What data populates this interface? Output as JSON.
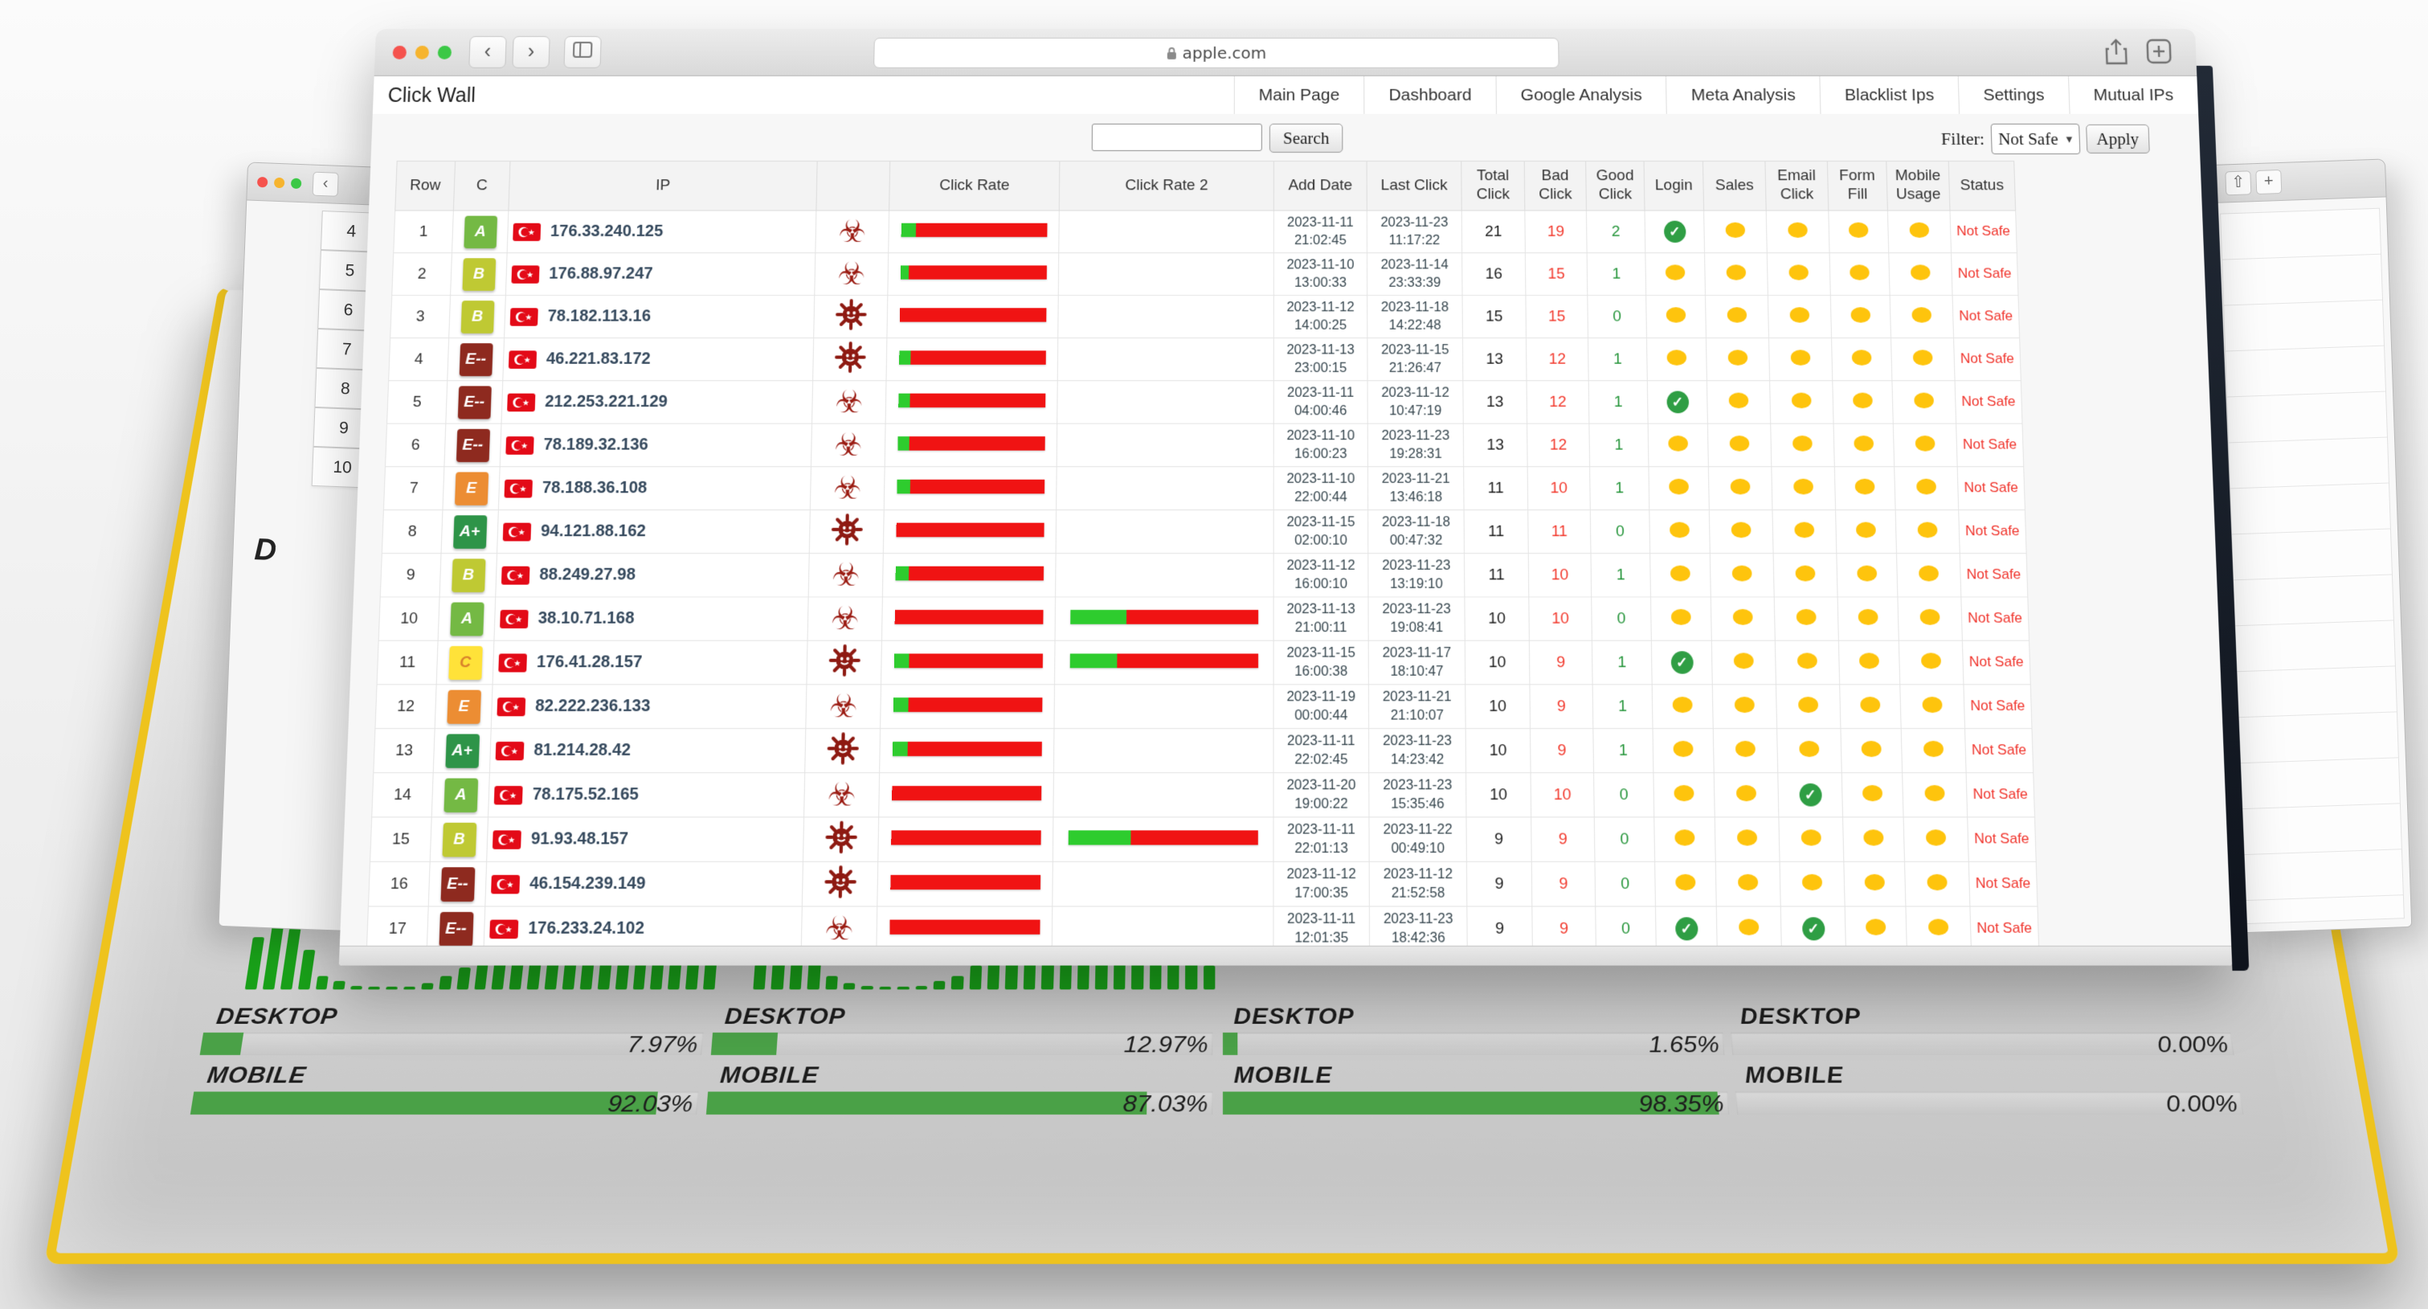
{
  "chrome": {
    "url": "apple.com",
    "brand": "Click Wall",
    "nav": [
      "Main Page",
      "Dashboard",
      "Google Analysis",
      "Meta Analysis",
      "Blacklist Ips",
      "Settings",
      "Mutual IPs"
    ],
    "search_button": "Search",
    "filter_label": "Filter:",
    "filter_value": "Not Safe",
    "apply_button": "Apply"
  },
  "icons": {
    "back": "‹",
    "forward": "›",
    "plus": "+",
    "check": "✓",
    "biohazard": "☣",
    "select_caret": "▾"
  },
  "table": {
    "headers": [
      "Row",
      "C",
      "IP",
      "",
      "Click Rate",
      "Click Rate 2",
      "Add Date",
      "Last Click",
      "Total Click",
      "Bad Click",
      "Good Click",
      "Login",
      "Sales",
      "Email Click",
      "Form Fill",
      "Mobile Usage",
      "Status"
    ],
    "grade_colors": {
      "A+": "#2e9448",
      "A": "#74b944",
      "B": "#bfc933",
      "C": "#ffe239",
      "E": "#ec8d33",
      "E--": "#8e2a1f"
    },
    "grade_text_colors": {
      "C": "#d9822b"
    },
    "rows": [
      {
        "row": "1",
        "grade": "A",
        "ip": "176.33.240.125",
        "threat": "biohazard",
        "cr": 10,
        "cr2": null,
        "add_date": "2023-11-11",
        "add_time": "21:02:45",
        "last_date": "2023-11-23",
        "last_time": "11:17:22",
        "total": "21",
        "bad": "19",
        "good": "2",
        "icons": [
          "check",
          "dot",
          "dot",
          "dot",
          "dot"
        ],
        "status": "Not Safe"
      },
      {
        "row": "2",
        "grade": "B",
        "ip": "176.88.97.247",
        "threat": "biohazard",
        "cr": 6,
        "cr2": null,
        "add_date": "2023-11-10",
        "add_time": "13:00:33",
        "last_date": "2023-11-14",
        "last_time": "23:33:39",
        "total": "16",
        "bad": "15",
        "good": "1",
        "icons": [
          "dot",
          "dot",
          "dot",
          "dot",
          "dot"
        ],
        "status": "Not Safe"
      },
      {
        "row": "3",
        "grade": "B",
        "ip": "78.182.113.16",
        "threat": "virus",
        "cr": 0,
        "cr2": null,
        "add_date": "2023-11-12",
        "add_time": "14:00:25",
        "last_date": "2023-11-18",
        "last_time": "14:22:48",
        "total": "15",
        "bad": "15",
        "good": "0",
        "icons": [
          "dot",
          "dot",
          "dot",
          "dot",
          "dot"
        ],
        "status": "Not Safe"
      },
      {
        "row": "4",
        "grade": "E--",
        "ip": "46.221.83.172",
        "threat": "virus",
        "cr": 8,
        "cr2": null,
        "add_date": "2023-11-13",
        "add_time": "23:00:15",
        "last_date": "2023-11-15",
        "last_time": "21:26:47",
        "total": "13",
        "bad": "12",
        "good": "1",
        "icons": [
          "dot",
          "dot",
          "dot",
          "dot",
          "dot"
        ],
        "status": "Not Safe"
      },
      {
        "row": "5",
        "grade": "E--",
        "ip": "212.253.221.129",
        "threat": "biohazard",
        "cr": 8,
        "cr2": null,
        "add_date": "2023-11-11",
        "add_time": "04:00:46",
        "last_date": "2023-11-12",
        "last_time": "10:47:19",
        "total": "13",
        "bad": "12",
        "good": "1",
        "icons": [
          "check",
          "dot",
          "dot",
          "dot",
          "dot"
        ],
        "status": "Not Safe"
      },
      {
        "row": "6",
        "grade": "E--",
        "ip": "78.189.32.136",
        "threat": "biohazard",
        "cr": 8,
        "cr2": null,
        "add_date": "2023-11-10",
        "add_time": "16:00:23",
        "last_date": "2023-11-23",
        "last_time": "19:28:31",
        "total": "13",
        "bad": "12",
        "good": "1",
        "icons": [
          "dot",
          "dot",
          "dot",
          "dot",
          "dot"
        ],
        "status": "Not Safe"
      },
      {
        "row": "7",
        "grade": "E",
        "ip": "78.188.36.108",
        "threat": "biohazard",
        "cr": 9,
        "cr2": null,
        "add_date": "2023-11-10",
        "add_time": "22:00:44",
        "last_date": "2023-11-21",
        "last_time": "13:46:18",
        "total": "11",
        "bad": "10",
        "good": "1",
        "icons": [
          "dot",
          "dot",
          "dot",
          "dot",
          "dot"
        ],
        "status": "Not Safe"
      },
      {
        "row": "8",
        "grade": "A+",
        "ip": "94.121.88.162",
        "threat": "virus",
        "cr": 0,
        "cr2": null,
        "add_date": "2023-11-15",
        "add_time": "02:00:10",
        "last_date": "2023-11-18",
        "last_time": "00:47:32",
        "total": "11",
        "bad": "11",
        "good": "0",
        "icons": [
          "dot",
          "dot",
          "dot",
          "dot",
          "dot"
        ],
        "status": "Not Safe"
      },
      {
        "row": "9",
        "grade": "B",
        "ip": "88.249.27.98",
        "threat": "biohazard",
        "cr": 9,
        "cr2": null,
        "add_date": "2023-11-12",
        "add_time": "16:00:10",
        "last_date": "2023-11-23",
        "last_time": "13:19:10",
        "total": "11",
        "bad": "10",
        "good": "1",
        "icons": [
          "dot",
          "dot",
          "dot",
          "dot",
          "dot"
        ],
        "status": "Not Safe"
      },
      {
        "row": "10",
        "grade": "A",
        "ip": "38.10.71.168",
        "threat": "biohazard",
        "cr": 0,
        "cr2": 30,
        "add_date": "2023-11-13",
        "add_time": "21:00:11",
        "last_date": "2023-11-23",
        "last_time": "19:08:41",
        "total": "10",
        "bad": "10",
        "good": "0",
        "icons": [
          "dot",
          "dot",
          "dot",
          "dot",
          "dot"
        ],
        "status": "Not Safe"
      },
      {
        "row": "11",
        "grade": "C",
        "ip": "176.41.28.157",
        "threat": "virus",
        "cr": 10,
        "cr2": 25,
        "add_date": "2023-11-15",
        "add_time": "16:00:38",
        "last_date": "2023-11-17",
        "last_time": "18:10:47",
        "total": "10",
        "bad": "9",
        "good": "1",
        "icons": [
          "check",
          "dot",
          "dot",
          "dot",
          "dot"
        ],
        "status": "Not Safe"
      },
      {
        "row": "12",
        "grade": "E",
        "ip": "82.222.236.133",
        "threat": "biohazard",
        "cr": 10,
        "cr2": null,
        "add_date": "2023-11-19",
        "add_time": "00:00:44",
        "last_date": "2023-11-21",
        "last_time": "21:10:07",
        "total": "10",
        "bad": "9",
        "good": "1",
        "icons": [
          "dot",
          "dot",
          "dot",
          "dot",
          "dot"
        ],
        "status": "Not Safe"
      },
      {
        "row": "13",
        "grade": "A+",
        "ip": "81.214.28.42",
        "threat": "virus",
        "cr": 10,
        "cr2": null,
        "add_date": "2023-11-11",
        "add_time": "22:02:45",
        "last_date": "2023-11-23",
        "last_time": "14:23:42",
        "total": "10",
        "bad": "9",
        "good": "1",
        "icons": [
          "dot",
          "dot",
          "dot",
          "dot",
          "dot"
        ],
        "status": "Not Safe"
      },
      {
        "row": "14",
        "grade": "A",
        "ip": "78.175.52.165",
        "threat": "biohazard",
        "cr": 0,
        "cr2": null,
        "add_date": "2023-11-20",
        "add_time": "19:00:22",
        "last_date": "2023-11-23",
        "last_time": "15:35:46",
        "total": "10",
        "bad": "10",
        "good": "0",
        "icons": [
          "dot",
          "dot",
          "check",
          "dot",
          "dot"
        ],
        "status": "Not Safe"
      },
      {
        "row": "15",
        "grade": "B",
        "ip": "91.93.48.157",
        "threat": "virus",
        "cr": 0,
        "cr2": 33,
        "add_date": "2023-11-11",
        "add_time": "22:01:13",
        "last_date": "2023-11-22",
        "last_time": "00:49:10",
        "total": "9",
        "bad": "9",
        "good": "0",
        "icons": [
          "dot",
          "dot",
          "dot",
          "dot",
          "dot"
        ],
        "status": "Not Safe"
      },
      {
        "row": "16",
        "grade": "E--",
        "ip": "46.154.239.149",
        "threat": "virus",
        "cr": 0,
        "cr2": null,
        "add_date": "2023-11-12",
        "add_time": "17:00:35",
        "last_date": "2023-11-12",
        "last_time": "21:52:58",
        "total": "9",
        "bad": "9",
        "good": "0",
        "icons": [
          "dot",
          "dot",
          "dot",
          "dot",
          "dot"
        ],
        "status": "Not Safe"
      },
      {
        "row": "17",
        "grade": "E--",
        "ip": "176.233.24.102",
        "threat": "biohazard",
        "cr": 0,
        "cr2": null,
        "add_date": "2023-11-11",
        "add_time": "12:01:35",
        "last_date": "2023-11-23",
        "last_time": "18:42:36",
        "total": "9",
        "bad": "9",
        "good": "0",
        "icons": [
          "check",
          "dot",
          "check",
          "dot",
          "dot"
        ],
        "status": "Not Safe"
      }
    ]
  },
  "bg_window": {
    "rows": [
      "4",
      "5",
      "6",
      "7",
      "8",
      "9",
      "10"
    ],
    "letter": "D"
  },
  "analytics": {
    "labels": {
      "desktop": "DESKTOP",
      "mobile": "MOBILE"
    },
    "charts": [
      {
        "bars": [
          48,
          72,
          56,
          36,
          12,
          8,
          3,
          2,
          2,
          2,
          6,
          12,
          20,
          28,
          32,
          42,
          42,
          40,
          52,
          100,
          54,
          52,
          60,
          64,
          72,
          78,
          26
        ]
      },
      {
        "bars": [
          42,
          65,
          50,
          30,
          12,
          6,
          3,
          2,
          2,
          3,
          8,
          12,
          22,
          26,
          36,
          36,
          34,
          40,
          48,
          42,
          35,
          42,
          50,
          55,
          65,
          22
        ]
      }
    ],
    "stats": [
      {
        "desktop_pct": "7.97%",
        "desktop_fill": 8,
        "mobile_pct": "92.03%",
        "mobile_fill": 92
      },
      {
        "desktop_pct": "12.97%",
        "desktop_fill": 13,
        "mobile_pct": "87.03%",
        "mobile_fill": 87
      },
      {
        "desktop_pct": "1.65%",
        "desktop_fill": 3,
        "mobile_pct": "98.35%",
        "mobile_fill": 98
      },
      {
        "desktop_pct": "0.00%",
        "desktop_fill": 0,
        "mobile_pct": "0.00%",
        "mobile_fill": 0
      }
    ]
  }
}
